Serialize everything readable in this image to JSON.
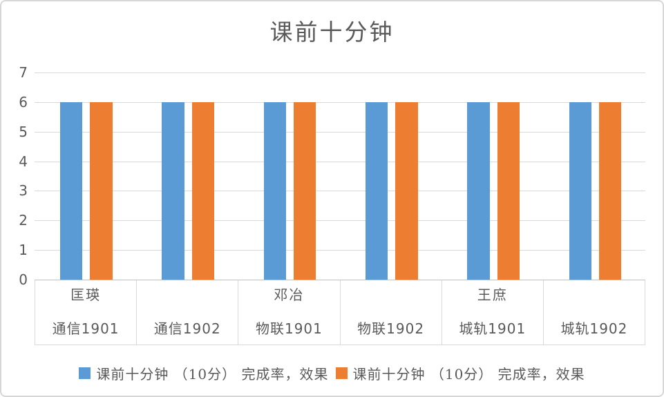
{
  "colors": {
    "series1": "#5B9BD5",
    "series2": "#ED7D31",
    "grid": "#D9D9D9",
    "text": "#595959",
    "background": "#FFFFFF"
  },
  "chart_data": {
    "type": "bar",
    "title": "课前十分钟",
    "categories": [
      {
        "teacher": "匡瑛",
        "class": "通信1901"
      },
      {
        "teacher": "",
        "class": "通信1902"
      },
      {
        "teacher": "邓冶",
        "class": "物联1901"
      },
      {
        "teacher": "",
        "class": "物联1902"
      },
      {
        "teacher": "王庶",
        "class": "城轨1901"
      },
      {
        "teacher": "",
        "class": "城轨1902"
      }
    ],
    "series": [
      {
        "name": "课前十分钟 （10分） 完成率，效果",
        "color": "#5B9BD5",
        "values": [
          6,
          6,
          6,
          6,
          6,
          6
        ]
      },
      {
        "name": "课前十分钟 （10分） 完成率，效果",
        "color": "#ED7D31",
        "values": [
          6,
          6,
          6,
          6,
          6,
          6
        ]
      }
    ],
    "ylim": [
      0,
      7
    ],
    "yticks": [
      0,
      1,
      2,
      3,
      4,
      5,
      6,
      7
    ],
    "grid": true,
    "legend_position": "bottom"
  }
}
